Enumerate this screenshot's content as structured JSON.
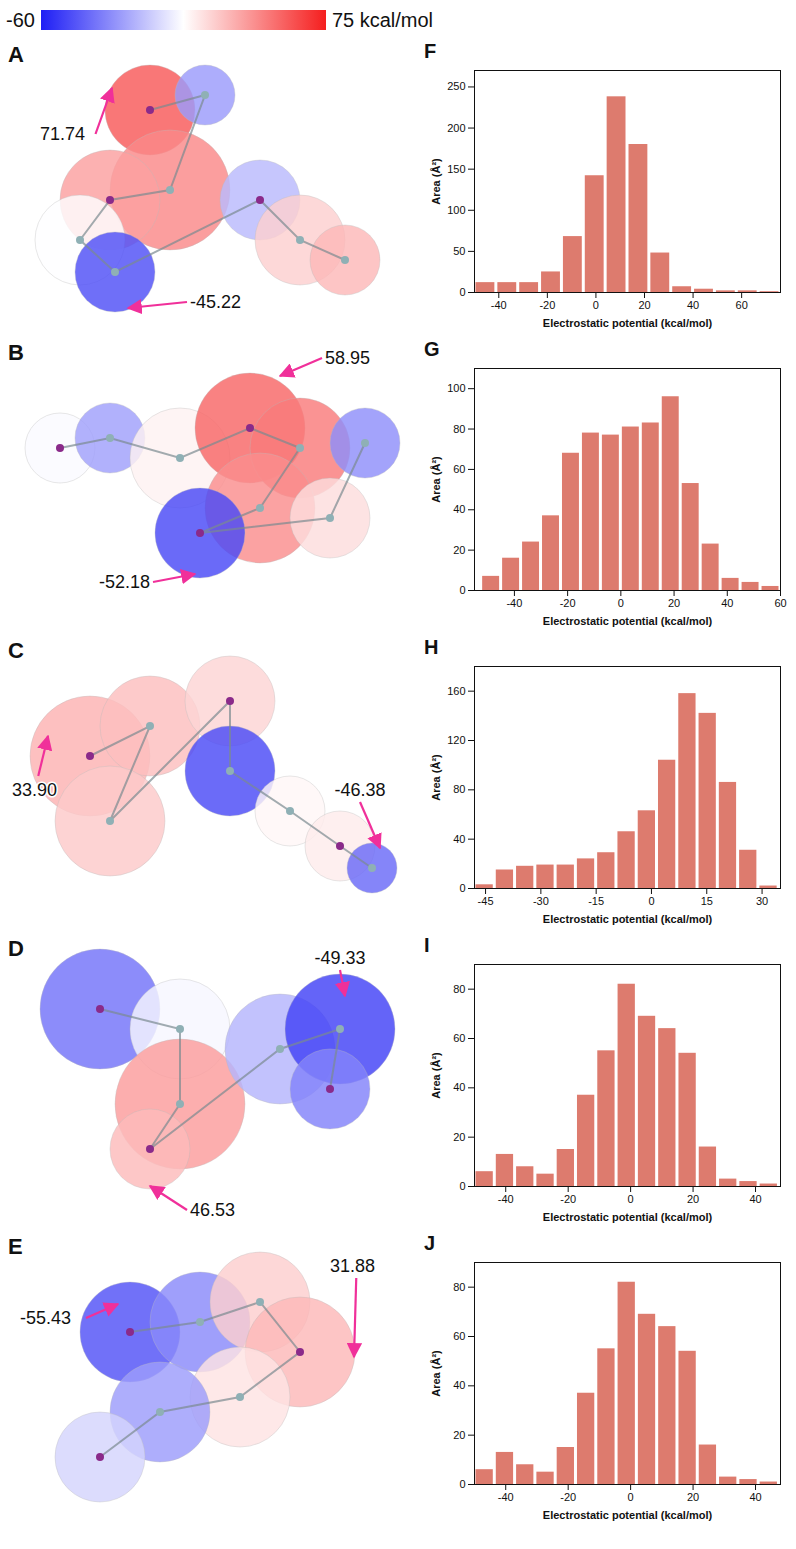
{
  "colorbar": {
    "range": [
      -60,
      75
    ],
    "ticks": [
      -60,
      {
        "value": 75,
        "label": "75 kcal/mol"
      }
    ]
  },
  "surfaces": [
    {
      "panel": "A",
      "max": 71.74,
      "min": -45.22
    },
    {
      "panel": "B",
      "max": 58.95,
      "min": -52.18
    },
    {
      "panel": "C",
      "max": {
        "value": 33.9,
        "label": "33.90"
      },
      "min": -46.38
    },
    {
      "panel": "D",
      "max": 46.53,
      "min": -49.33
    },
    {
      "panel": "E",
      "max": 31.88,
      "min": -55.43
    }
  ],
  "chart_data": [
    {
      "panel": "F",
      "type": "histogram",
      "x_label": "Electrostatic potential (kcal/mol)",
      "y_label": "Area (Å²)",
      "bins": [
        -50,
        -41,
        -32,
        -23,
        -14,
        -5,
        4,
        13,
        22,
        31,
        40,
        49,
        58,
        67,
        76
      ],
      "counts": [
        12,
        12,
        12,
        25,
        68,
        142,
        238,
        180,
        48,
        7,
        4,
        2,
        2,
        1
      ],
      "color": "#dd7b6e",
      "xlim": [
        -50,
        76
      ],
      "ylim": [
        0,
        270
      ],
      "xticks": [
        -40,
        -20,
        0,
        20,
        40,
        60
      ],
      "yticks": [
        0,
        50,
        100,
        150,
        200,
        250
      ]
    },
    {
      "panel": "G",
      "type": "histogram",
      "x_label": "Electrostatic potential (kcal/mol)",
      "y_label": "Area (Å²)",
      "bins": [
        -52.5,
        -45,
        -37.5,
        -30,
        -22.5,
        -15,
        -7.5,
        0,
        7.5,
        15,
        22.5,
        30,
        37.5,
        45,
        52.5,
        60
      ],
      "counts": [
        7,
        16,
        24,
        37,
        68,
        78,
        77,
        81,
        83,
        96,
        53,
        23,
        6,
        4,
        2
      ],
      "color": "#dd7b6e",
      "xlim": [
        -55,
        60
      ],
      "ylim": [
        0,
        110
      ],
      "xticks": [
        -40,
        -20,
        0,
        20,
        40,
        60
      ],
      "yticks": [
        0,
        20,
        40,
        60,
        80,
        100
      ]
    },
    {
      "panel": "H",
      "type": "histogram",
      "x_label": "Electrostatic potential (kcal/mol)",
      "y_label": "Area (Å²)",
      "bins": [
        -48,
        -42.5,
        -37,
        -31.5,
        -26,
        -20.5,
        -15,
        -9.5,
        -4,
        1.5,
        7,
        12.5,
        18,
        23.5,
        29,
        34.5
      ],
      "counts": [
        3,
        15,
        18,
        19,
        19,
        24,
        29,
        46,
        63,
        104,
        158,
        142,
        86,
        31,
        2
      ],
      "color": "#dd7b6e",
      "xlim": [
        -48,
        35
      ],
      "ylim": [
        0,
        180
      ],
      "xticks": [
        -45,
        -30,
        -15,
        0,
        15,
        30
      ],
      "yticks": [
        0,
        40,
        80,
        120,
        160
      ]
    },
    {
      "panel": "I",
      "type": "histogram",
      "x_label": "Electrostatic potential (kcal/mol)",
      "y_label": "Area (Å²)",
      "bins": [
        -50,
        -43.5,
        -37,
        -30.5,
        -24,
        -17.5,
        -11,
        -4.5,
        2,
        8.5,
        15,
        21.5,
        28,
        34.5,
        41,
        47.5
      ],
      "counts": [
        6,
        13,
        8,
        5,
        15,
        37,
        55,
        82,
        69,
        64,
        54,
        16,
        3,
        2,
        1
      ],
      "color": "#dd7b6e",
      "xlim": [
        -50,
        48
      ],
      "ylim": [
        0,
        90
      ],
      "xticks": [
        -40,
        -20,
        0,
        20,
        40
      ],
      "yticks": [
        0,
        20,
        40,
        60,
        80
      ]
    },
    {
      "panel": "J",
      "type": "histogram",
      "x_label": "Electrostatic potential (kcal/mol)",
      "y_label": "Area (Å²)",
      "bins": [
        -50,
        -43.5,
        -37,
        -30.5,
        -24,
        -17.5,
        -11,
        -4.5,
        2,
        8.5,
        15,
        21.5,
        28,
        34.5,
        41,
        47.5
      ],
      "counts": [
        6,
        13,
        8,
        5,
        15,
        37,
        55,
        82,
        69,
        64,
        54,
        16,
        3,
        2,
        1
      ],
      "color": "#dd7b6e",
      "xlim": [
        -50,
        48
      ],
      "ylim": [
        0,
        90
      ],
      "xticks": [
        -40,
        -20,
        0,
        20,
        40
      ],
      "yticks": [
        0,
        20,
        40,
        60,
        80
      ]
    }
  ]
}
